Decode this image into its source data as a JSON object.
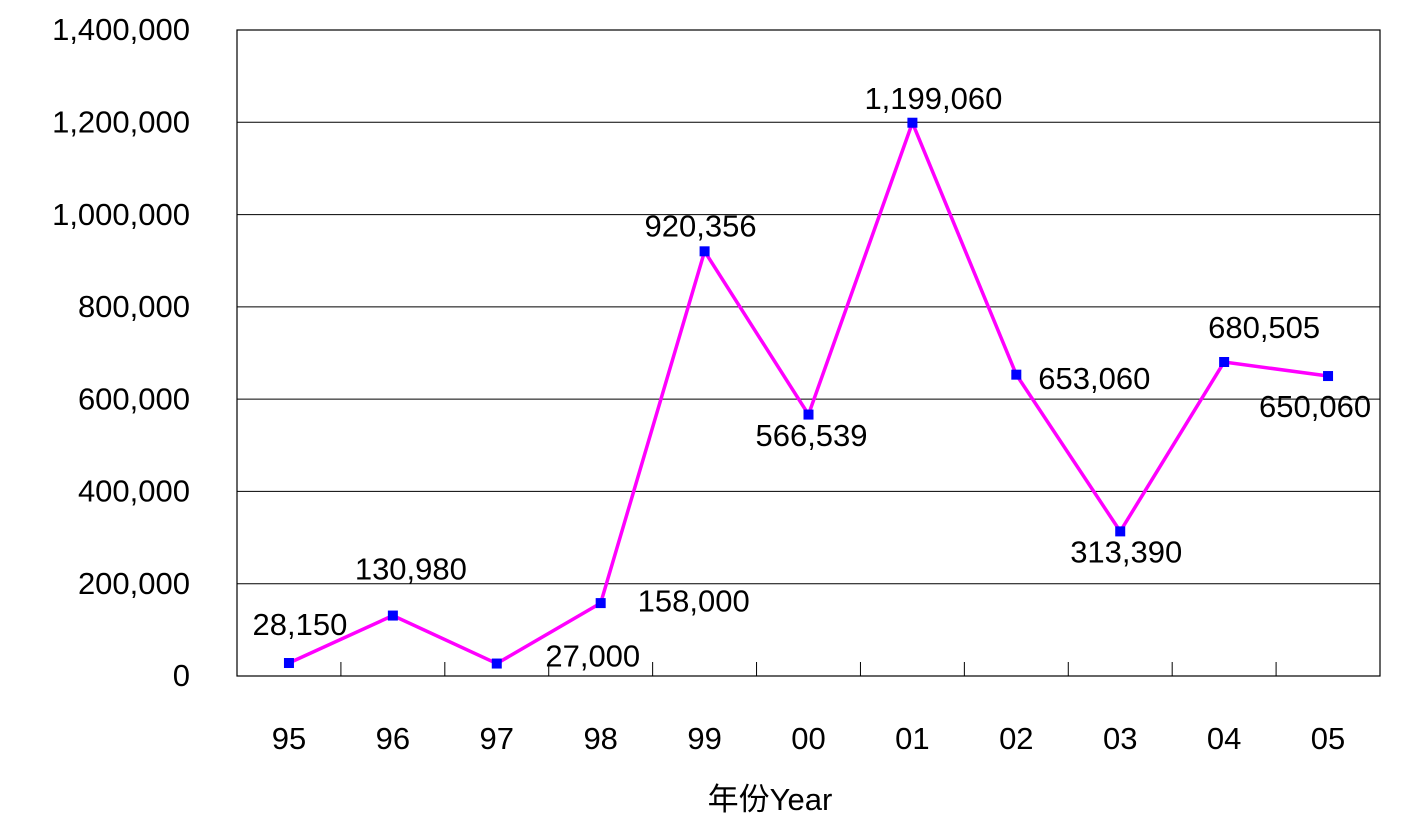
{
  "chart_data": {
    "type": "line",
    "x_label": "年份Year",
    "categories": [
      "95",
      "96",
      "97",
      "98",
      "99",
      "00",
      "01",
      "02",
      "03",
      "04",
      "05"
    ],
    "series": [
      {
        "color": "#ff00ff",
        "marker_color": "#0000ff",
        "values": [
          28150,
          130980,
          27000,
          158000,
          920356,
          566539,
          1199060,
          653060,
          313390,
          680505,
          650060
        ],
        "value_labels": [
          "28,150",
          "130,980",
          "27,000",
          "158,000",
          "920,356",
          "566,539",
          "1,199,060",
          "653,060",
          "313,390",
          "680,505",
          "650,060"
        ]
      }
    ],
    "ylim": [
      0,
      1400000
    ],
    "yticks": [
      0,
      {
        "value": 200000,
        "label": "200,000"
      },
      {
        "value": 400000,
        "label": "400,000"
      },
      {
        "value": 600000,
        "label": "600,000"
      },
      {
        "value": 800000,
        "label": "800,000"
      },
      {
        "value": 1000000,
        "label": "1,000,000"
      },
      {
        "value": 1200000,
        "label": "1,200,000"
      },
      {
        "value": 1400000,
        "label": "1,400,000"
      }
    ],
    "grid": true
  }
}
